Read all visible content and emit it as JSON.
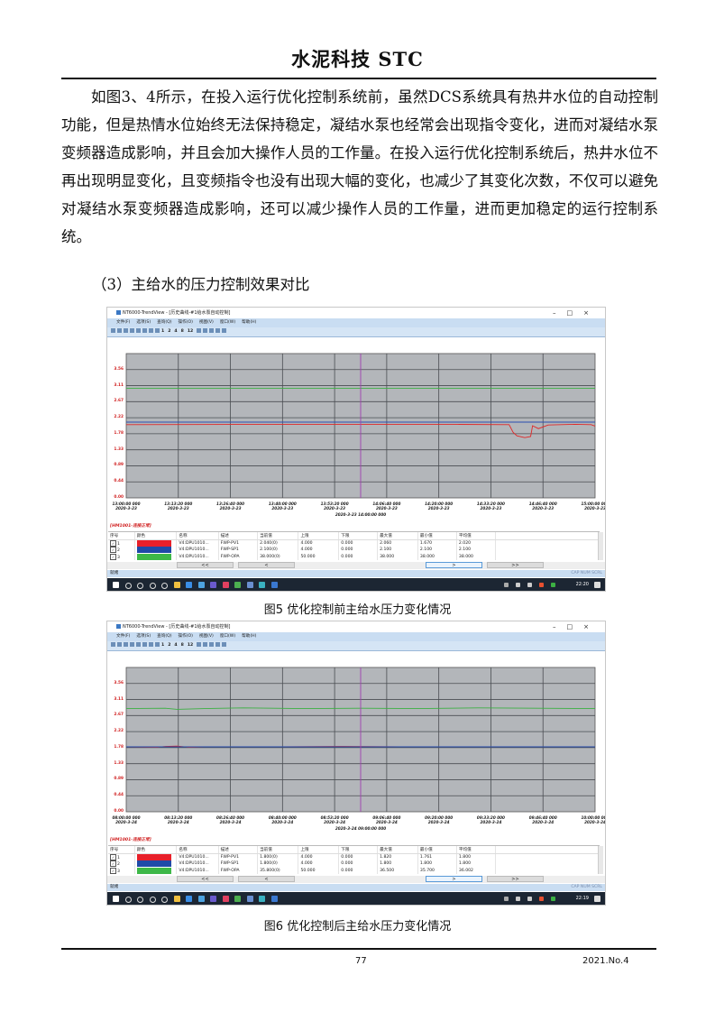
{
  "header": {
    "journal": "水泥科技  STC"
  },
  "body": {
    "paragraph": "如图3、4所示，在投入运行优化控制系统前，虽然DCS系统具有热井水位的自动控制功能，但是热情水位始终无法保持稳定，凝结水泵也经常会出现指令变化，进而对凝结水泵变频器造成影响，并且会加大操作人员的工作量。在投入运行优化控制系统后，热井水位不再出现明显变化，且变频指令也没有出现大幅的变化，也减少了其变化次数，不仅可以避免对凝结水泵变频器造成影响，还可以减少操作人员的工作量，进而更加稳定的运行控制系统。",
    "subheading": "（3）主给水的压力控制效果对比"
  },
  "figures": [
    {
      "caption": "图5  优化控制前主给水压力变化情况",
      "window_title": "NT6000-TrendView - [历史曲线-#1给水泵自动控制]",
      "menu": [
        "文件(F)",
        "选项(S)",
        "查询(Q)",
        "操作(O)",
        "视图(V)",
        "窗口(W)",
        "帮助(H)"
      ],
      "toolbar_numbers": [
        "1",
        "2",
        "4",
        "8",
        "12"
      ],
      "y_ticks": [
        "3.56",
        "3.11",
        "2.67",
        "2.22",
        "1.78",
        "1.33",
        "0.89",
        "0.44",
        "0.00"
      ],
      "x_ticks": [
        [
          "13:00:00 000",
          "2020-3-23"
        ],
        [
          "13:13:20 000",
          "2020-3-23"
        ],
        [
          "13:26:40 000",
          "2020-3-23"
        ],
        [
          "13:40:00 000",
          "2020-3-23"
        ],
        [
          "13:53:20 000",
          "2020-3-23"
        ],
        [
          "14:06:40 000",
          "2020-3-23"
        ],
        [
          "14:20:00 000",
          "2020-3-23"
        ],
        [
          "14:33:20 000",
          "2020-3-23"
        ],
        [
          "14:46:40 000",
          "2020-3-23"
        ],
        [
          "15:00:00 000",
          "2020-3-23"
        ]
      ],
      "cursor_label": "2020-3-23 14:00:00 000",
      "connection": "[HM1001-连接正常]",
      "chart_data": {
        "type": "line",
        "ylim": [
          0,
          4
        ],
        "xlim": [
          "13:00:00",
          "15:00:00"
        ],
        "cursor": "14:00:00",
        "grid": true,
        "series": [
          {
            "color": "#3cb043",
            "points": [
              [
                "13:00:00",
                3.04
              ],
              [
                "15:00:00",
                3.04
              ]
            ]
          },
          {
            "color": "#2a4db0",
            "points": [
              [
                "13:00:00",
                2.1
              ],
              [
                "15:00:00",
                2.1
              ]
            ]
          },
          {
            "color": "#e02828",
            "points": [
              [
                "13:00:00",
                2.03
              ],
              [
                "13:40:00",
                2.04
              ],
              [
                "14:20:00",
                2.04
              ],
              [
                "14:38:00",
                2.03
              ],
              [
                "14:39:00",
                1.82
              ],
              [
                "14:40:00",
                1.72
              ],
              [
                "14:42:00",
                1.67
              ],
              [
                "14:43:30",
                1.7
              ],
              [
                "14:44:00",
                2.0
              ],
              [
                "14:45:30",
                1.92
              ],
              [
                "14:48:00",
                2.02
              ],
              [
                "14:55:00",
                2.04
              ],
              [
                "14:59:00",
                2.03
              ],
              [
                "15:00:00",
                1.99
              ]
            ]
          }
        ]
      },
      "table": {
        "headers": [
          "序号",
          "颜色",
          "名称",
          "描述",
          "当前值",
          "上限",
          "下限",
          "最大值",
          "最小值",
          "平均值"
        ],
        "rows": [
          {
            "no": "1",
            "color": "#e8202a",
            "name": "V4:DPU1010...",
            "desc": "FWP-PV1",
            "cur": "2.040(0)",
            "hi": "4.000",
            "lo": "0.000",
            "max": "2.060",
            "min": "1.670",
            "avg": "2.020"
          },
          {
            "no": "2",
            "color": "#1f4aa8",
            "name": "V4:DPU1010...",
            "desc": "FWP-SP1",
            "cur": "2.100(0)",
            "hi": "4.000",
            "lo": "0.000",
            "max": "2.100",
            "min": "2.100",
            "avg": "2.100"
          },
          {
            "no": "3",
            "color": "#3db848",
            "name": "V4:DPU1010...",
            "desc": "FWP-OPA",
            "cur": "38.000(0)",
            "hi": "50.000",
            "lo": "0.000",
            "max": "38.000",
            "min": "38.000",
            "avg": "38.000"
          }
        ]
      },
      "scroll": [
        "<<",
        "<",
        ">",
        ">>"
      ],
      "status": "就绪",
      "indicators": "CAP NUM SCRL",
      "clock": "22:20"
    },
    {
      "caption": "图6  优化控制后主给水压力变化情况",
      "window_title": "NT6000-TrendView - [历史曲线-#1给水泵自动控制]",
      "menu": [
        "文件(F)",
        "选项(S)",
        "查询(Q)",
        "操作(O)",
        "视图(V)",
        "窗口(W)",
        "帮助(H)"
      ],
      "toolbar_numbers": [
        "1",
        "2",
        "4",
        "8",
        "12"
      ],
      "y_ticks": [
        "3.56",
        "3.11",
        "2.67",
        "2.22",
        "1.78",
        "1.33",
        "0.89",
        "0.44",
        "0.00"
      ],
      "x_ticks": [
        [
          "08:00:00 000",
          "2020-3-24"
        ],
        [
          "08:13:20 000",
          "2020-3-24"
        ],
        [
          "08:26:40 000",
          "2020-3-24"
        ],
        [
          "08:40:00 000",
          "2020-3-24"
        ],
        [
          "08:53:20 000",
          "2020-3-24"
        ],
        [
          "09:06:40 000",
          "2020-3-24"
        ],
        [
          "09:20:00 000",
          "2020-3-24"
        ],
        [
          "09:33:20 000",
          "2020-3-24"
        ],
        [
          "09:46:40 000",
          "2020-3-24"
        ],
        [
          "10:00:00 000",
          "2020-3-24"
        ]
      ],
      "cursor_label": "2020-3-24 09:00:00 000",
      "connection": "[HM1001-连接正常]",
      "chart_data": {
        "type": "line",
        "ylim": [
          0,
          4
        ],
        "xlim": [
          "08:00:00",
          "10:00:00"
        ],
        "cursor": "09:00:00",
        "grid": true,
        "series": [
          {
            "color": "#3cb043",
            "points": [
              [
                "08:00:00",
                2.86
              ],
              [
                "08:10:00",
                2.87
              ],
              [
                "08:13:00",
                2.84
              ],
              [
                "08:20:00",
                2.86
              ],
              [
                "08:30:00",
                2.88
              ],
              [
                "08:45:00",
                2.86
              ],
              [
                "09:00:00",
                2.87
              ],
              [
                "09:15:00",
                2.86
              ],
              [
                "09:30:00",
                2.88
              ],
              [
                "09:45:00",
                2.87
              ],
              [
                "10:00:00",
                2.86
              ]
            ]
          },
          {
            "color": "#e02828",
            "points": [
              [
                "08:00:00",
                1.8
              ],
              [
                "08:08:00",
                1.79
              ],
              [
                "08:10:00",
                1.81
              ],
              [
                "08:13:00",
                1.82
              ],
              [
                "08:16:00",
                1.79
              ],
              [
                "08:20:00",
                1.8
              ],
              [
                "08:40:00",
                1.8
              ],
              [
                "08:55:00",
                1.81
              ],
              [
                "09:10:00",
                1.8
              ],
              [
                "09:40:00",
                1.8
              ],
              [
                "10:00:00",
                1.8
              ]
            ]
          },
          {
            "color": "#2a4db0",
            "points": [
              [
                "08:00:00",
                1.8
              ],
              [
                "10:00:00",
                1.8
              ]
            ]
          }
        ]
      },
      "table": {
        "headers": [
          "序号",
          "颜色",
          "名称",
          "描述",
          "当前值",
          "上限",
          "下限",
          "最大值",
          "最小值",
          "平均值"
        ],
        "rows": [
          {
            "no": "1",
            "color": "#e8202a",
            "name": "V4:DPU1010...",
            "desc": "FWP-PV1",
            "cur": "1.800(0)",
            "hi": "4.000",
            "lo": "0.000",
            "max": "1.820",
            "min": "1.761",
            "avg": "1.800"
          },
          {
            "no": "2",
            "color": "#1f4aa8",
            "name": "V4:DPU1010...",
            "desc": "FWP-SP1",
            "cur": "1.800(0)",
            "hi": "4.000",
            "lo": "0.000",
            "max": "1.800",
            "min": "1.800",
            "avg": "1.800"
          },
          {
            "no": "3",
            "color": "#3db848",
            "name": "V4:DPU1010...",
            "desc": "FWP-OPA",
            "cur": "35.800(0)",
            "hi": "50.000",
            "lo": "0.000",
            "max": "36.500",
            "min": "35.700",
            "avg": "36.002"
          }
        ]
      },
      "scroll": [
        "<<",
        "<",
        ">",
        ">>"
      ],
      "status": "就绪",
      "indicators": "CAP NUM SCRL",
      "clock": "22:19"
    }
  ],
  "footer": {
    "page": "77",
    "issue": "2021.No.4"
  }
}
